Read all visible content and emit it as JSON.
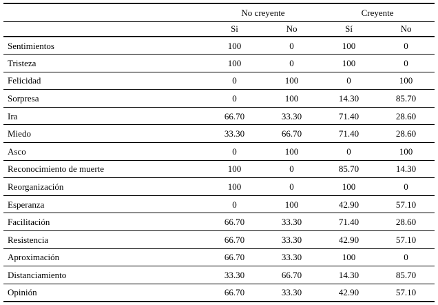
{
  "table": {
    "corner_label": "",
    "col_groups": [
      {
        "label": "No creyente"
      },
      {
        "label": "Creyente"
      }
    ],
    "sub_headers": [
      "Si",
      "No",
      "Sí",
      "No"
    ],
    "rows": [
      {
        "label": "Sentimientos",
        "values": [
          "100",
          "0",
          "100",
          "0"
        ]
      },
      {
        "label": "Tristeza",
        "values": [
          "100",
          "0",
          "100",
          "0"
        ]
      },
      {
        "label": "Felicidad",
        "values": [
          "0",
          "100",
          "0",
          "100"
        ]
      },
      {
        "label": "Sorpresa",
        "values": [
          "0",
          "100",
          "14.30",
          "85.70"
        ]
      },
      {
        "label": "Ira",
        "values": [
          "66.70",
          "33.30",
          "71.40",
          "28.60"
        ]
      },
      {
        "label": "Miedo",
        "values": [
          "33.30",
          "66.70",
          "71.40",
          "28.60"
        ]
      },
      {
        "label": "Asco",
        "values": [
          "0",
          "100",
          "0",
          "100"
        ]
      },
      {
        "label": "Reconocimiento de muerte",
        "values": [
          "100",
          "0",
          "85.70",
          "14.30"
        ]
      },
      {
        "label": "Reorganización",
        "values": [
          "100",
          "0",
          "100",
          "0"
        ]
      },
      {
        "label": "Esperanza",
        "values": [
          "0",
          "100",
          "42.90",
          "57.10"
        ]
      },
      {
        "label": "Facilitación",
        "values": [
          "66.70",
          "33.30",
          "71.40",
          "28.60"
        ]
      },
      {
        "label": "Resistencia",
        "values": [
          "66.70",
          "33.30",
          "42.90",
          "57.10"
        ]
      },
      {
        "label": "Aproximación",
        "values": [
          "66.70",
          "33.30",
          "100",
          "0"
        ]
      },
      {
        "label": "Distanciamiento",
        "values": [
          "33.30",
          "66.70",
          "14.30",
          "85.70"
        ]
      },
      {
        "label": "Opinión",
        "values": [
          "66.70",
          "33.30",
          "42.90",
          "57.10"
        ]
      }
    ],
    "colors": {
      "background": "#ffffff",
      "text": "#000000",
      "border": "#000000"
    }
  }
}
